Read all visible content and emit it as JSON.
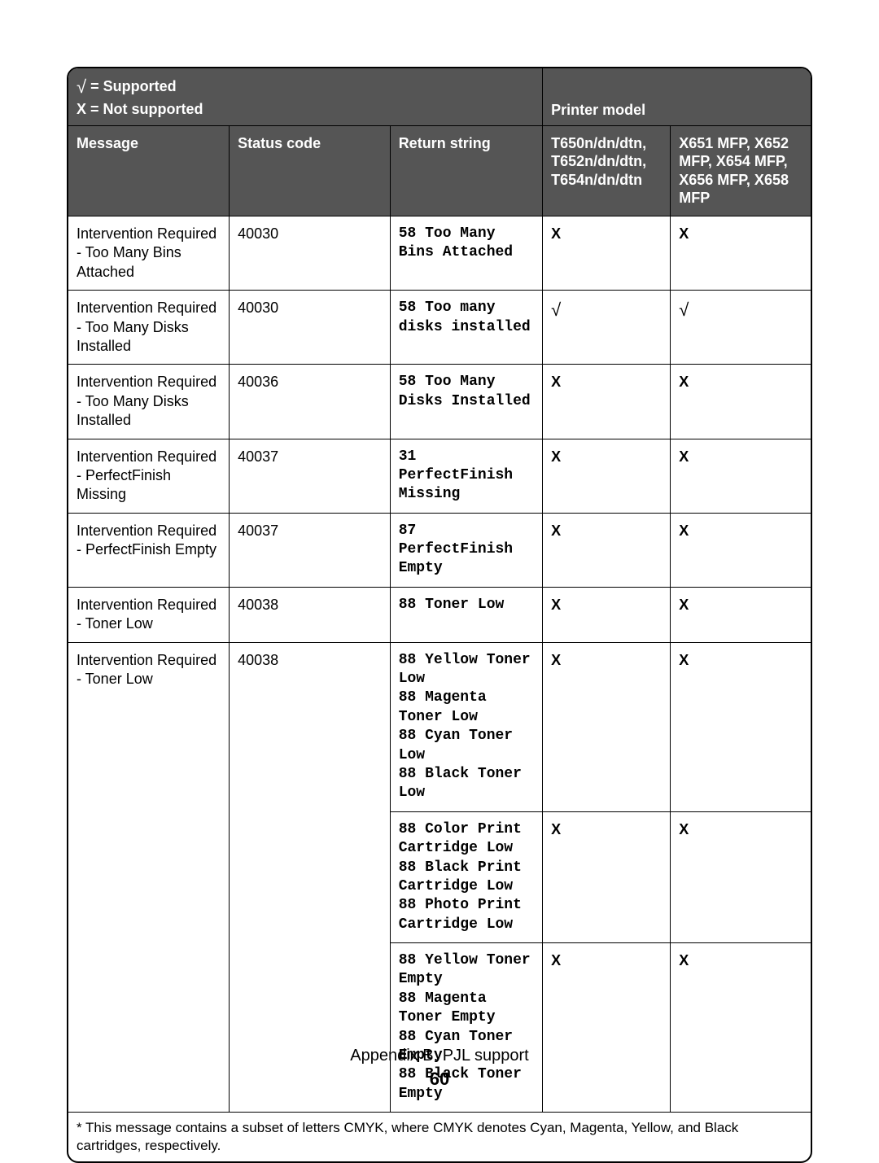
{
  "colors": {
    "header_bg": "#555555",
    "header_fg": "#ffffff",
    "border": "#000000",
    "page_bg": "#ffffff",
    "text": "#000000"
  },
  "legend": {
    "supported": "= Supported",
    "not_supported": "X = Not supported",
    "check_glyph": "√"
  },
  "printer_model_label": "Printer model",
  "columns": {
    "message": "Message",
    "status_code": "Status code",
    "return_string": "Return string",
    "model_a": "T650n/dn/dtn, T652n/dn/dtn, T654n/dn/dtn",
    "model_b": "X651 MFP, X652 MFP, X654 MFP, X656 MFP, X658 MFP"
  },
  "marks": {
    "x": "X",
    "check": "√"
  },
  "rows": [
    {
      "msg": "Intervention Required - Too Many Bins Attached",
      "code": "40030",
      "ret": "58 Too Many Bins Attached",
      "a": "X",
      "b": "X"
    },
    {
      "msg": "Intervention Required - Too Many Disks Installed",
      "code": "40030",
      "ret": "58 Too many disks installed",
      "a": "√",
      "b": "√"
    },
    {
      "msg": "Intervention Required - Too Many Disks Installed",
      "code": "40036",
      "ret": "58 Too Many Disks Installed",
      "a": "X",
      "b": "X"
    },
    {
      "msg": "Intervention Required - PerfectFinish Missing",
      "code": "40037",
      "ret": "31 PerfectFinish Missing",
      "a": "X",
      "b": "X"
    },
    {
      "msg": "Intervention Required - PerfectFinish Empty",
      "code": "40037",
      "ret": "87 PerfectFinish Empty",
      "a": "X",
      "b": "X"
    },
    {
      "msg": "Intervention Required - Toner Low",
      "code": "40038",
      "ret": "88 Toner Low",
      "a": "X",
      "b": "X"
    },
    {
      "msg": "Intervention Required - Toner Low",
      "code": "40038",
      "ret": "88 Yellow Toner Low\n88 Magenta Toner Low\n88 Cyan Toner Low\n88 Black Toner Low",
      "a": "X",
      "b": "X"
    },
    {
      "msg": "",
      "code": "",
      "ret": "88 Color Print Cartridge Low\n88 Black Print Cartridge Low\n88 Photo Print Cartridge Low",
      "a": "X",
      "b": "X",
      "continuation": true
    },
    {
      "msg": "",
      "code": "",
      "ret": "88 Yellow Toner Empty\n88 Magenta Toner Empty\n88 Cyan Toner Empty\n88 Black Toner Empty",
      "a": "X",
      "b": "X",
      "continuation": true
    }
  ],
  "footnote": "* This message contains a subset of letters CMYK, where CMYK denotes Cyan, Magenta, Yellow, and Black cartridges, respectively.",
  "footer": {
    "title": "Appendix B: PJL support",
    "page": "60"
  }
}
